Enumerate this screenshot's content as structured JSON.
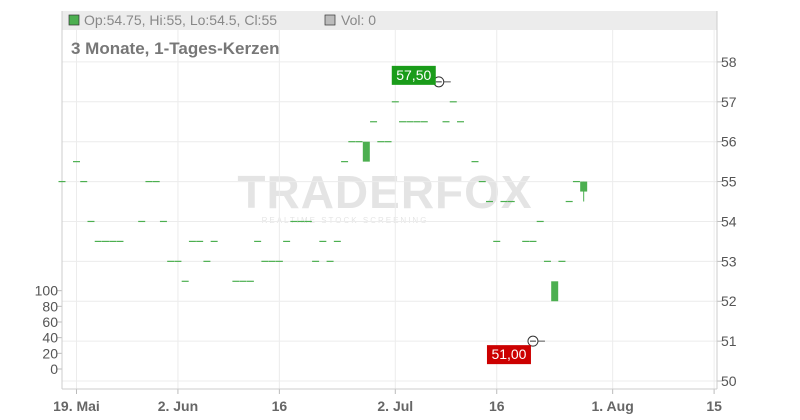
{
  "legend": {
    "ohlc_text": "Op:54.75, Hi:55, Lo:54.5, Cl:55",
    "vol_text": "Vol: 0",
    "price_color": "#4caf50",
    "vol_color": "#bbbbbb"
  },
  "subtitle": "3 Monate, 1-Tages-Kerzen",
  "watermark": {
    "brand": "TRADERFOX",
    "tagline": "REALTIME STOCK SCREENING"
  },
  "chart_data": {
    "type": "candlestick",
    "price_axis": {
      "side": "right",
      "range": [
        49.8,
        58.8
      ],
      "ticks": [
        "50",
        "51",
        "52",
        "53",
        "54",
        "55",
        "56",
        "57",
        "58"
      ]
    },
    "volume_axis": {
      "side": "left",
      "range": [
        0,
        120
      ],
      "ticks": [
        "0",
        "20",
        "40",
        "60",
        "80",
        "100"
      ]
    },
    "x_ticks": [
      {
        "label": "19. Mai",
        "day": 0
      },
      {
        "label": "2. Jun",
        "day": 14
      },
      {
        "label": "16",
        "day": 28
      },
      {
        "label": "2. Jul",
        "day": 44
      },
      {
        "label": "16",
        "day": 58
      },
      {
        "label": "1. Aug",
        "day": 74
      },
      {
        "label": "15",
        "day": 88
      }
    ],
    "x_range": [
      -2,
      88.4
    ],
    "candles": [
      {
        "day": -2,
        "o": 55,
        "c": 55
      },
      {
        "day": 0,
        "o": 55.5,
        "c": 55.5
      },
      {
        "day": 1,
        "o": 55,
        "c": 55
      },
      {
        "day": 2,
        "o": 54,
        "c": 54
      },
      {
        "day": 3,
        "o": 53.5,
        "c": 53.5
      },
      {
        "day": 4,
        "o": 53.5,
        "c": 53.5
      },
      {
        "day": 5,
        "o": 53.5,
        "c": 53.5
      },
      {
        "day": 6,
        "o": 53.5,
        "c": 53.5
      },
      {
        "day": 9,
        "o": 54,
        "c": 54
      },
      {
        "day": 10,
        "o": 55,
        "c": 55
      },
      {
        "day": 11,
        "o": 55,
        "c": 55
      },
      {
        "day": 12,
        "o": 54,
        "c": 54
      },
      {
        "day": 13,
        "o": 53,
        "c": 53
      },
      {
        "day": 14,
        "o": 53,
        "c": 53
      },
      {
        "day": 15,
        "o": 52.5,
        "c": 52.5
      },
      {
        "day": 16,
        "o": 53.5,
        "c": 53.5
      },
      {
        "day": 17,
        "o": 53.5,
        "c": 53.5
      },
      {
        "day": 18,
        "o": 53,
        "c": 53
      },
      {
        "day": 19,
        "o": 53.5,
        "c": 53.5
      },
      {
        "day": 22,
        "o": 52.5,
        "c": 52.5
      },
      {
        "day": 23,
        "o": 52.5,
        "c": 52.5
      },
      {
        "day": 24,
        "o": 52.5,
        "c": 52.5
      },
      {
        "day": 25,
        "o": 53.5,
        "c": 53.5
      },
      {
        "day": 26,
        "o": 53,
        "c": 53
      },
      {
        "day": 27,
        "o": 53,
        "c": 53
      },
      {
        "day": 28,
        "o": 53,
        "c": 53
      },
      {
        "day": 29,
        "o": 53.5,
        "c": 53.5
      },
      {
        "day": 30,
        "o": 54,
        "c": 54
      },
      {
        "day": 31,
        "o": 54,
        "c": 54
      },
      {
        "day": 32,
        "o": 54,
        "c": 54
      },
      {
        "day": 33,
        "o": 53,
        "c": 53
      },
      {
        "day": 34,
        "o": 53.5,
        "c": 53.5
      },
      {
        "day": 35,
        "o": 53,
        "c": 53
      },
      {
        "day": 36,
        "o": 53.5,
        "c": 53.5
      },
      {
        "day": 37,
        "o": 55.5,
        "c": 55.5
      },
      {
        "day": 38,
        "o": 56,
        "c": 56
      },
      {
        "day": 39,
        "o": 56,
        "c": 56
      },
      {
        "day": 40,
        "o": 55.5,
        "c": 56
      },
      {
        "day": 41,
        "o": 56.5,
        "c": 56.5
      },
      {
        "day": 42,
        "o": 56,
        "c": 56
      },
      {
        "day": 43,
        "o": 56,
        "c": 56
      },
      {
        "day": 44,
        "o": 57,
        "c": 57
      },
      {
        "day": 45,
        "o": 56.5,
        "c": 56.5
      },
      {
        "day": 46,
        "o": 56.5,
        "c": 56.5
      },
      {
        "day": 47,
        "o": 56.5,
        "c": 56.5
      },
      {
        "day": 48,
        "o": 56.5,
        "c": 56.5
      },
      {
        "day": 50,
        "o": 57.5,
        "c": 57.5
      },
      {
        "day": 51,
        "o": 56.5,
        "c": 56.5
      },
      {
        "day": 52,
        "o": 57,
        "c": 57
      },
      {
        "day": 53,
        "o": 56.5,
        "c": 56.5
      },
      {
        "day": 55,
        "o": 55.5,
        "c": 55.5
      },
      {
        "day": 56,
        "o": 55,
        "c": 55
      },
      {
        "day": 57,
        "o": 54.5,
        "c": 54.5
      },
      {
        "day": 58,
        "o": 53.5,
        "c": 53.5
      },
      {
        "day": 59,
        "o": 54.5,
        "c": 54.5
      },
      {
        "day": 60,
        "o": 54.5,
        "c": 54.5
      },
      {
        "day": 62,
        "o": 53.5,
        "c": 53.5
      },
      {
        "day": 63,
        "o": 53.5,
        "c": 53.5
      },
      {
        "day": 64,
        "o": 54,
        "c": 54
      },
      {
        "day": 65,
        "o": 53,
        "c": 53
      },
      {
        "day": 66,
        "o": 52,
        "c": 52.5
      },
      {
        "day": 67,
        "o": 53,
        "c": 53
      },
      {
        "day": 68,
        "o": 54.5,
        "c": 54.5
      },
      {
        "day": 69,
        "o": 55,
        "c": 55
      },
      {
        "day": 70,
        "o": 54.75,
        "c": 55,
        "h": 55,
        "l": 54.5
      }
    ],
    "markers": [
      {
        "label": "57,50",
        "day": 50,
        "price": 57.5,
        "kind": "high",
        "color": "#1a9c1a"
      },
      {
        "label": "51,00",
        "day": 63,
        "price": 51.0,
        "kind": "low",
        "color": "#cc0000"
      }
    ],
    "grid": true
  }
}
